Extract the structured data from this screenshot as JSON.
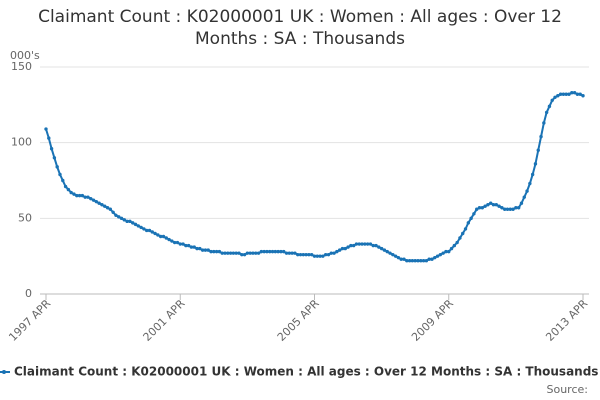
{
  "chart_data": {
    "type": "line",
    "title": "Claimant Count : K02000001 UK : Women : All ages : Over 12 Months : SA : Thousands",
    "y_label": "000's",
    "source": "Source:",
    "categories": [
      "1997 APR",
      null,
      null,
      null,
      null,
      null,
      null,
      null,
      null,
      null,
      null,
      null,
      null,
      null,
      null,
      null,
      null,
      null,
      null,
      null,
      null,
      null,
      null,
      null,
      null,
      null,
      null,
      null,
      null,
      null,
      null,
      null,
      null,
      null,
      null,
      null,
      null,
      null,
      null,
      null,
      null,
      null,
      null,
      null,
      null,
      null,
      null,
      null,
      "2001 APR",
      null,
      null,
      null,
      null,
      null,
      null,
      null,
      null,
      null,
      null,
      null,
      null,
      null,
      null,
      null,
      null,
      null,
      null,
      null,
      null,
      null,
      null,
      null,
      null,
      null,
      null,
      null,
      null,
      null,
      null,
      null,
      null,
      null,
      null,
      null,
      null,
      null,
      null,
      null,
      null,
      null,
      null,
      null,
      null,
      null,
      null,
      null,
      "2005 APR",
      null,
      null,
      null,
      null,
      null,
      null,
      null,
      null,
      null,
      null,
      null,
      null,
      null,
      null,
      null,
      null,
      null,
      null,
      null,
      null,
      null,
      null,
      null,
      null,
      null,
      null,
      null,
      null,
      null,
      null,
      null,
      null,
      null,
      null,
      null,
      null,
      null,
      null,
      null,
      null,
      null,
      null,
      null,
      null,
      null,
      null,
      null,
      "2009 APR",
      null,
      null,
      null,
      null,
      null,
      null,
      null,
      null,
      null,
      null,
      null,
      null,
      null,
      null,
      null,
      null,
      null,
      null,
      null,
      null,
      null,
      null,
      null,
      null,
      null,
      null,
      null,
      null,
      null,
      null,
      null,
      null,
      null,
      null,
      null,
      null,
      null,
      null,
      null,
      null,
      null,
      null,
      null,
      null,
      null,
      null,
      null,
      "2013 APR"
    ],
    "series": [
      {
        "name": "Claimant Count : K02000001 UK : Women : All ages : Over 12 Months : SA : Thousands",
        "color": "#1a73b5",
        "values": [
          109,
          103,
          96,
          90,
          84,
          79,
          75,
          71,
          69,
          67,
          66,
          65,
          65,
          65,
          64,
          64,
          63,
          62,
          61,
          60,
          59,
          58,
          57,
          56,
          54,
          52,
          51,
          50,
          49,
          48,
          48,
          47,
          46,
          45,
          44,
          43,
          42,
          42,
          41,
          40,
          39,
          38,
          38,
          37,
          36,
          35,
          34,
          34,
          33,
          33,
          32,
          32,
          31,
          31,
          30,
          30,
          29,
          29,
          29,
          28,
          28,
          28,
          28,
          27,
          27,
          27,
          27,
          27,
          27,
          27,
          26,
          26,
          27,
          27,
          27,
          27,
          27,
          28,
          28,
          28,
          28,
          28,
          28,
          28,
          28,
          28,
          27,
          27,
          27,
          27,
          26,
          26,
          26,
          26,
          26,
          26,
          25,
          25,
          25,
          25,
          26,
          26,
          27,
          27,
          28,
          29,
          30,
          30,
          31,
          32,
          32,
          33,
          33,
          33,
          33,
          33,
          33,
          32,
          32,
          31,
          30,
          29,
          28,
          27,
          26,
          25,
          24,
          23,
          23,
          22,
          22,
          22,
          22,
          22,
          22,
          22,
          22,
          23,
          23,
          24,
          25,
          26,
          27,
          28,
          28,
          30,
          32,
          34,
          37,
          40,
          43,
          47,
          50,
          53,
          56,
          57,
          57,
          58,
          59,
          60,
          59,
          59,
          58,
          57,
          56,
          56,
          56,
          56,
          57,
          57,
          60,
          64,
          68,
          73,
          79,
          86,
          95,
          104,
          113,
          120,
          124,
          128,
          130,
          131,
          132,
          132,
          132,
          132,
          133,
          133,
          132,
          132,
          131
        ]
      }
    ],
    "ylim": [
      0,
      150
    ],
    "yticks": [
      0,
      50,
      100,
      150
    ],
    "grid": true
  }
}
